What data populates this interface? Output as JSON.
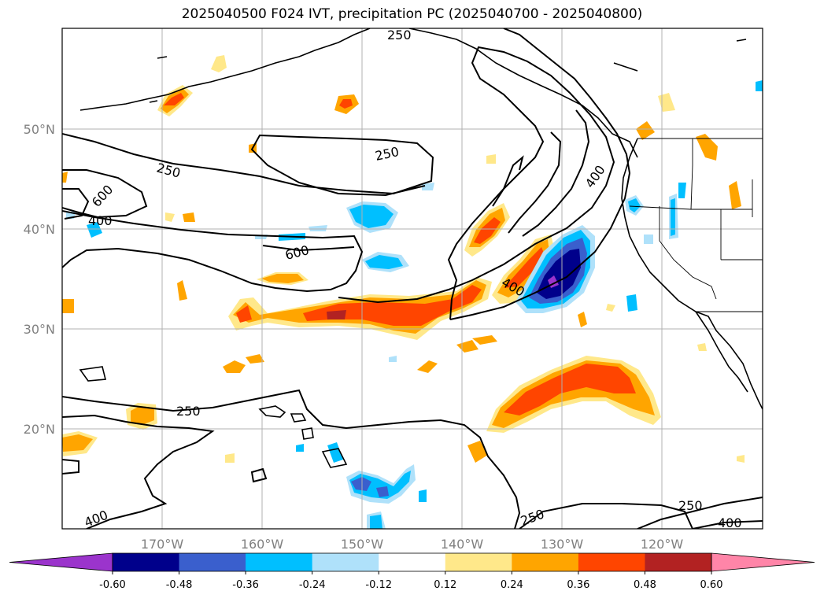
{
  "title": "2025040500 F024 IVT, precipitation PC (2025040700 - 2025040800)",
  "lat_labels": [
    "50°N",
    "40°N",
    "30°N",
    "20°N"
  ],
  "lon_labels": [
    "170°W",
    "160°W",
    "150°W",
    "140°W",
    "130°W",
    "120°W"
  ],
  "colorbar": {
    "colors": [
      "#9b34cc",
      "#00008b",
      "#3a5fcd",
      "#00bfff",
      "#afe1fa",
      "#ffffff",
      "#ffe88a",
      "#ffa500",
      "#ff4500",
      "#b22222",
      "#ff85a8"
    ],
    "ticks": [
      "-0.60",
      "-0.48",
      "-0.36",
      "-0.24",
      "-0.12",
      "0.12",
      "0.24",
      "0.36",
      "0.48",
      "0.60"
    ]
  },
  "contour_labels": {
    "top_250": "250",
    "mid_250_left": "250",
    "mid_250_right": "250",
    "left_600": "600",
    "left_400": "400",
    "center_600": "600",
    "coast_400": "400",
    "jet_400": "400",
    "south_250": "250",
    "bottom_left_400": "400",
    "bottom_250_a": "250",
    "bottom_250_b": "250",
    "bottom_400_right": "400"
  }
}
